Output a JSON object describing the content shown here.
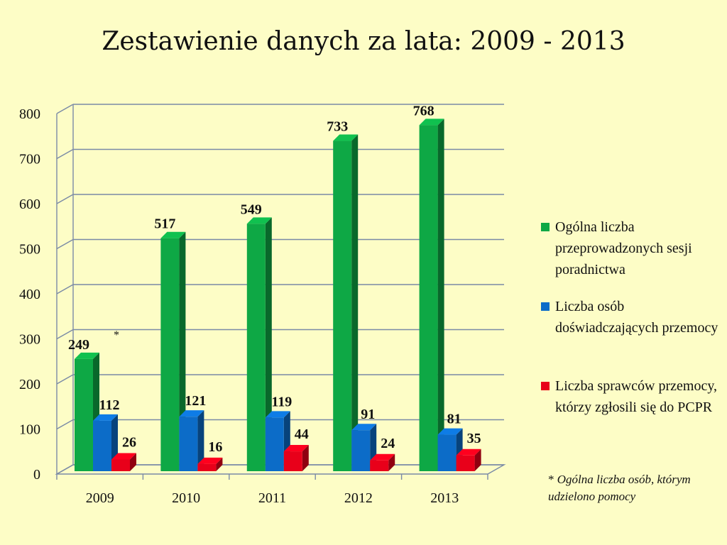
{
  "title": "Zestawienie danych za lata: 2009 - 2013",
  "chart_data": {
    "type": "bar",
    "categories": [
      "2009",
      "2010",
      "2011",
      "2012",
      "2013"
    ],
    "series": [
      {
        "name": "Ogólna liczba przeprowadzonych sesji poradnictwa",
        "values": [
          249,
          517,
          549,
          733,
          768
        ],
        "color": "#0ea845"
      },
      {
        "name": "Liczba osób doświadczających przemocy",
        "values": [
          112,
          121,
          119,
          91,
          81
        ],
        "color": "#0c6cc8"
      },
      {
        "name": "Liczba sprawców przemocy, którzy zgłosili się do PCPR",
        "values": [
          26,
          16,
          44,
          24,
          35
        ],
        "color": "#e8001a"
      }
    ],
    "yticks": [
      "0",
      "100",
      "200",
      "300",
      "400",
      "500",
      "600",
      "700",
      "800"
    ],
    "ylim": [
      0,
      800
    ],
    "grid": true,
    "legend": "right",
    "annotation_marker": "*"
  },
  "footnote": {
    "star": "*",
    "text": "Ogólna liczba osób, którym udzielono pomocy"
  }
}
